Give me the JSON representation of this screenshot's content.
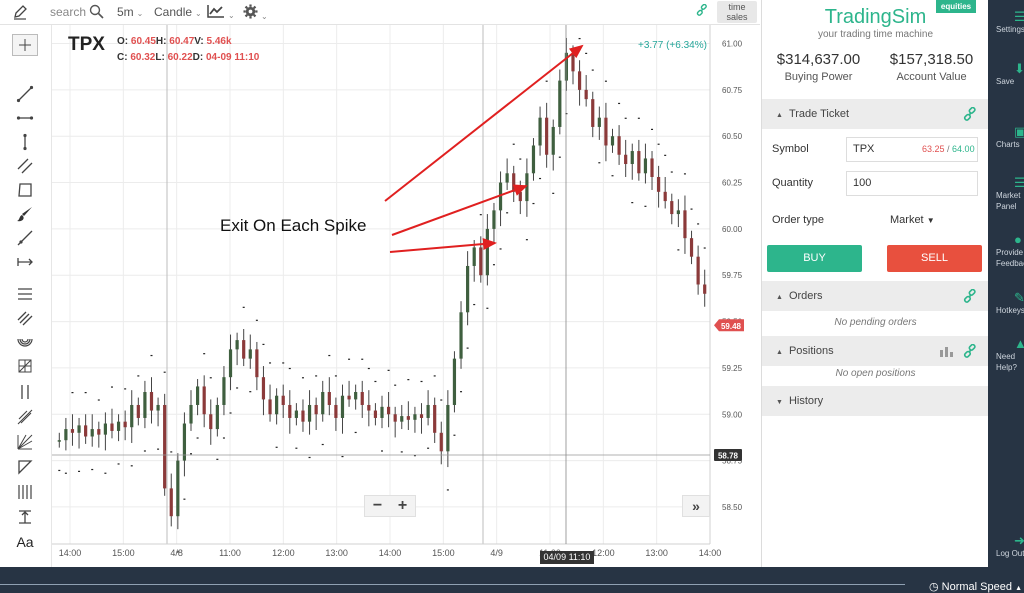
{
  "toolbar": {
    "search_placeholder": "search",
    "interval": "5m",
    "chart_style": "Candle",
    "time_sales": [
      "time",
      "sales"
    ]
  },
  "chart": {
    "symbol": "TPX",
    "ohlc": {
      "o_label": "O:",
      "o": "60.45",
      "h_label": "H:",
      "h": "60.47",
      "v_label": "V:",
      "v": "5.46k",
      "c_label": "C:",
      "c": "60.32",
      "l_label": "L:",
      "l": "60.22",
      "d_label": "D:",
      "d": "04-09 11:10"
    },
    "change": "+3.77 (+6.34%)",
    "annotation": "Exit On Each Spike",
    "zoom_out": "−",
    "zoom_in": "+",
    "scroll_right": "»",
    "crosshair_time": "04/09 11:10",
    "price_tag_current": "59.48",
    "price_tag_line": "58.78"
  },
  "chart_data": {
    "type": "candlestick",
    "ylim": [
      58.3,
      61.1
    ],
    "y_ticks": [
      "61.00",
      "60.75",
      "60.50",
      "60.25",
      "60.00",
      "59.75",
      "59.50",
      "59.25",
      "59.00",
      "58.75",
      "58.50"
    ],
    "x_ticks": [
      "14:00",
      "15:00",
      "4/8",
      "11:00",
      "12:00",
      "13:00",
      "14:00",
      "15:00",
      "4/9",
      "11:00",
      "12:00",
      "13:00",
      "14:00"
    ],
    "series": [
      {
        "values": [
          58.86,
          58.92,
          58.9,
          58.94,
          58.88,
          58.92,
          58.89,
          58.95,
          58.91,
          58.96,
          58.93,
          59.05,
          58.98,
          59.12,
          59.02,
          59.05,
          58.6,
          58.45,
          58.75,
          58.95,
          59.05,
          59.15,
          59.0,
          58.92,
          59.05,
          59.2,
          59.35,
          59.4,
          59.3,
          59.35,
          59.2,
          59.08,
          59.0,
          59.1,
          59.05,
          58.98,
          59.02,
          58.96,
          59.05,
          59.0,
          59.12,
          59.05,
          58.98,
          59.1,
          59.08,
          59.12,
          59.05,
          59.02,
          58.98,
          59.04,
          59.0,
          58.96,
          58.99,
          58.97,
          59.0,
          58.98,
          59.05,
          58.9,
          58.8,
          59.05,
          59.3,
          59.55,
          59.8,
          59.9,
          59.75,
          60.0,
          60.1,
          60.25,
          60.3,
          60.2,
          60.15,
          60.3,
          60.45,
          60.6,
          60.4,
          60.55,
          60.8,
          60.95,
          60.85,
          60.75,
          60.7,
          60.55,
          60.6,
          60.45,
          60.5,
          60.4,
          60.35,
          60.42,
          60.3,
          60.38,
          60.28,
          60.2,
          60.15,
          60.08,
          60.1,
          59.95,
          59.85,
          59.7,
          59.65
        ]
      }
    ]
  },
  "panel": {
    "brand": "TradingSim",
    "tagline": "your trading time machine",
    "badge": "equities",
    "buying_power": "$314,637.00",
    "buying_power_label": "Buying Power",
    "account_value": "$157,318.50",
    "account_value_label": "Account Value",
    "trade_ticket": "Trade Ticket",
    "symbol_label": "Symbol",
    "symbol_value": "TPX",
    "bid": "63.25",
    "bid_ask_sep": " / ",
    "ask": "64.00",
    "quantity_label": "Quantity",
    "quantity_value": "100",
    "order_type_label": "Order type",
    "order_type_value": "Market",
    "buy": "BUY",
    "sell": "SELL",
    "orders": "Orders",
    "orders_empty": "No pending orders",
    "positions": "Positions",
    "positions_empty": "No open positions",
    "history": "History"
  },
  "nav": {
    "settings": "Settings",
    "save": "Save",
    "charts": "Charts",
    "market_panel_1": "Market",
    "market_panel_2": "Panel",
    "feedback_1": "Provide",
    "feedback_2": "Feedback",
    "hotkeys": "Hotkeys",
    "help_1": "Need",
    "help_2": "Help?",
    "logout": "Log Out"
  },
  "status": {
    "speed": "Normal Speed"
  },
  "colors": {
    "accent": "#2db58c",
    "down": "#8b3a3a",
    "up": "#3f5f3f",
    "sell": "#e8503e",
    "nav_bg": "#273444"
  }
}
